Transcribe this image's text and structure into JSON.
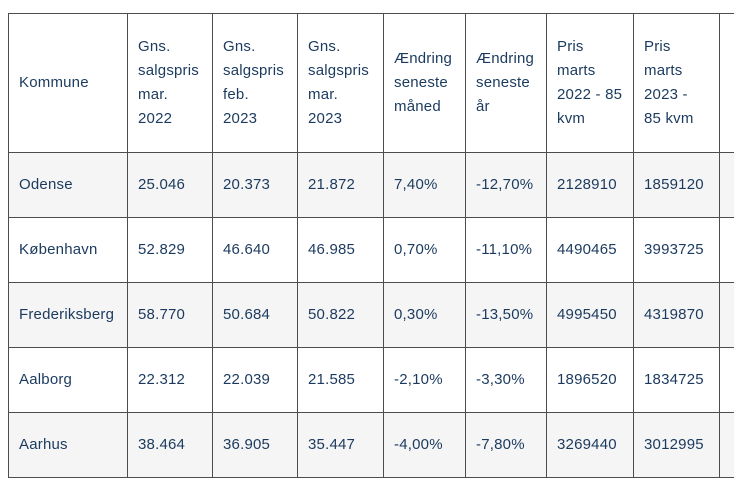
{
  "table": {
    "headers": [
      "Kommune",
      "Gns. salgspris mar. 2022",
      "Gns. salgspris feb. 2023",
      "Gns. salgspris mar. 2023",
      "Ændring seneste måned",
      "Ændring seneste år",
      "Pris marts 2022 - 85 kvm",
      "Pris marts 2023 - 85 kvm"
    ],
    "rows": [
      [
        "Odense",
        "25.046",
        "20.373",
        "21.872",
        "7,40%",
        "-12,70%",
        "2128910",
        "1859120"
      ],
      [
        "København",
        "52.829",
        "46.640",
        "46.985",
        "0,70%",
        "-11,10%",
        "4490465",
        "3993725"
      ],
      [
        "Frederiksberg",
        "58.770",
        "50.684",
        "50.822",
        "0,30%",
        "-13,50%",
        "4995450",
        "4319870"
      ],
      [
        "Aalborg",
        "22.312",
        "22.039",
        "21.585",
        "-2,10%",
        "-3,30%",
        "1896520",
        "1834725"
      ],
      [
        "Aarhus",
        "38.464",
        "36.905",
        "35.447",
        "-4,00%",
        "-7,80%",
        "3269440",
        "3012995"
      ]
    ]
  },
  "chart_data": {
    "type": "table",
    "columns": [
      "Kommune",
      "Gns. salgspris mar. 2022",
      "Gns. salgspris feb. 2023",
      "Gns. salgspris mar. 2023",
      "Ændring seneste måned",
      "Ændring seneste år",
      "Pris marts 2022 - 85 kvm",
      "Pris marts 2023 - 85 kvm"
    ],
    "rows": [
      [
        "Odense",
        25046,
        20373,
        21872,
        "7,40%",
        "-12,70%",
        2128910,
        1859120
      ],
      [
        "København",
        52829,
        46640,
        46985,
        "0,70%",
        "-11,10%",
        4490465,
        3993725
      ],
      [
        "Frederiksberg",
        58770,
        50684,
        50822,
        "0,30%",
        "-13,50%",
        4995450,
        4319870
      ],
      [
        "Aalborg",
        22312,
        22039,
        21585,
        "-2,10%",
        "-3,30%",
        1896520,
        1834725
      ],
      [
        "Aarhus",
        38464,
        36905,
        35447,
        "-4,00%",
        "-7,80%",
        3269440,
        3012995
      ]
    ]
  },
  "colors": {
    "text": "#1b3a5e",
    "border": "#4d4d4d",
    "stripe": "#f5f5f5",
    "background": "#ffffff"
  }
}
